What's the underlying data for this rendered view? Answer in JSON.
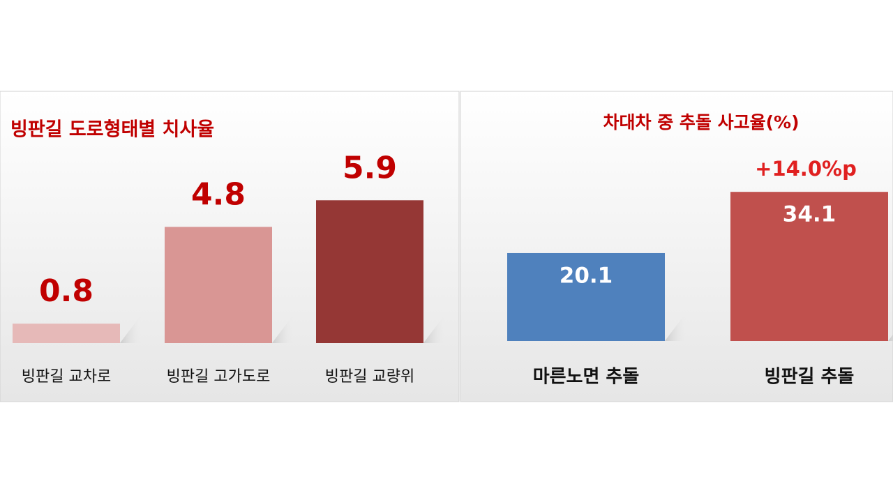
{
  "chart_data": [
    {
      "type": "bar",
      "title": "빙판길 도로형태별 치사율",
      "categories": [
        "빙판길 교차로",
        "빙판길 고가도로",
        "빙판길 교량위"
      ],
      "values": [
        0.8,
        4.8,
        5.9
      ],
      "colors": [
        "#e6b9b8",
        "#d99694",
        "#953735"
      ]
    },
    {
      "type": "bar",
      "title": "차대차 중 추돌 사고율(%)",
      "categories": [
        "마른노면 추돌",
        "빙판길 추돌"
      ],
      "values": [
        20.1,
        34.1
      ],
      "colors": [
        "#4f81bd",
        "#c0504d"
      ],
      "annotation": "+14.0%p"
    }
  ]
}
